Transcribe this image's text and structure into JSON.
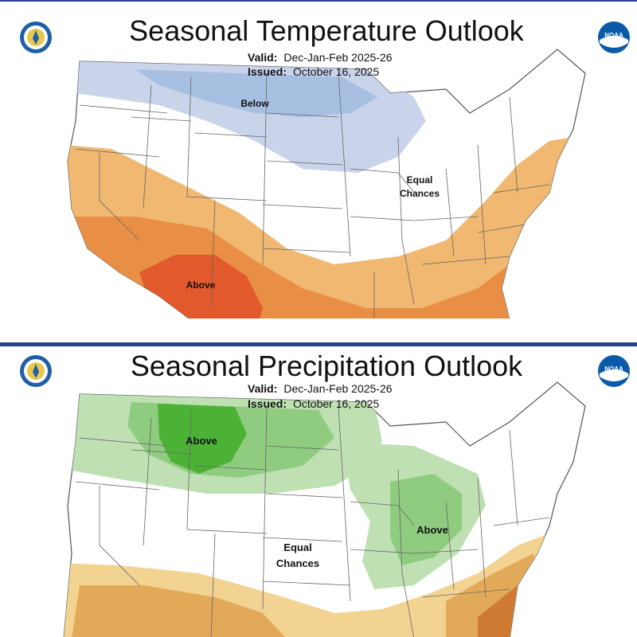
{
  "temperature": {
    "title": "Seasonal Temperature Outlook",
    "valid_label": "Valid:",
    "valid_value": "Dec-Jan-Feb 2025-26",
    "issued_label": "Issued:",
    "issued_value": "October 16, 2025",
    "labels": {
      "below": "Below",
      "above": "Above",
      "equal_line1": "Equal",
      "equal_line2": "Chances"
    }
  },
  "precipitation": {
    "title": "Seasonal Precipitation Outlook",
    "valid_label": "Valid:",
    "valid_value": "Dec-Jan-Feb 2025-26",
    "issued_label": "Issued:",
    "issued_value": "October 16, 2025",
    "labels": {
      "above_northwest": "Above",
      "above_ohio": "Above",
      "equal_line1": "Equal",
      "equal_line2": "Chances"
    }
  },
  "logos": {
    "left": "department-of-commerce-seal",
    "right": "noaa-logo",
    "noaa_text": "NOAA"
  },
  "colors": {
    "below_light": "#c9d3ea",
    "below_mid": "#a7c0e2",
    "above_light": "#f0b870",
    "above_mid": "#e98f45",
    "above_dark": "#e25a2b",
    "precip_light": "#bfe0b3",
    "precip_mid": "#8fcc80",
    "precip_dark": "#4cb236",
    "dry_light": "#f3d392",
    "dry_mid": "#e2aa58",
    "dry_dark": "#cf7a33",
    "border": "#2a3f8f"
  }
}
